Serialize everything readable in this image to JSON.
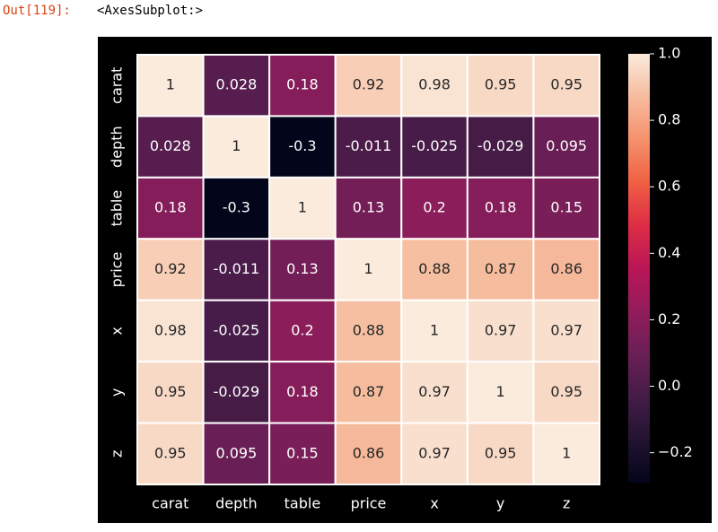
{
  "notebook": {
    "prompt": "Out[119]:",
    "output_text": "<AxesSubplot:>"
  },
  "chart_data": {
    "type": "heatmap",
    "x_categories": [
      "carat",
      "depth",
      "table",
      "price",
      "x",
      "y",
      "z"
    ],
    "y_categories": [
      "carat",
      "depth",
      "table",
      "price",
      "x",
      "y",
      "z"
    ],
    "values": [
      [
        1,
        0.028,
        0.18,
        0.92,
        0.98,
        0.95,
        0.95
      ],
      [
        0.028,
        1,
        -0.3,
        -0.011,
        -0.025,
        -0.029,
        0.095
      ],
      [
        0.18,
        -0.3,
        1,
        0.13,
        0.2,
        0.18,
        0.15
      ],
      [
        0.92,
        -0.011,
        0.13,
        1,
        0.88,
        0.87,
        0.86
      ],
      [
        0.98,
        -0.025,
        0.2,
        0.88,
        1,
        0.97,
        0.97
      ],
      [
        0.95,
        -0.029,
        0.18,
        0.87,
        0.97,
        1,
        0.95
      ],
      [
        0.95,
        0.095,
        0.15,
        0.86,
        0.97,
        0.95,
        1
      ]
    ],
    "clim": [
      -0.29,
      1
    ],
    "cticks": [
      {
        "value": 1,
        "label": "1.0"
      },
      0.8,
      0.6,
      0.4,
      0.2,
      {
        "value": 0,
        "label": "0.0"
      },
      {
        "value": -0.2,
        "label": "−0.2"
      }
    ],
    "colormap": [
      "#03051a",
      "#221331",
      "#451c47",
      "#6a1f56",
      "#921c5b",
      "#b91657",
      "#dd2c45",
      "#f06043",
      "#f5916c",
      "#f6bc9e",
      "#faebdd"
    ],
    "cell_border_color": "#ffffff"
  }
}
